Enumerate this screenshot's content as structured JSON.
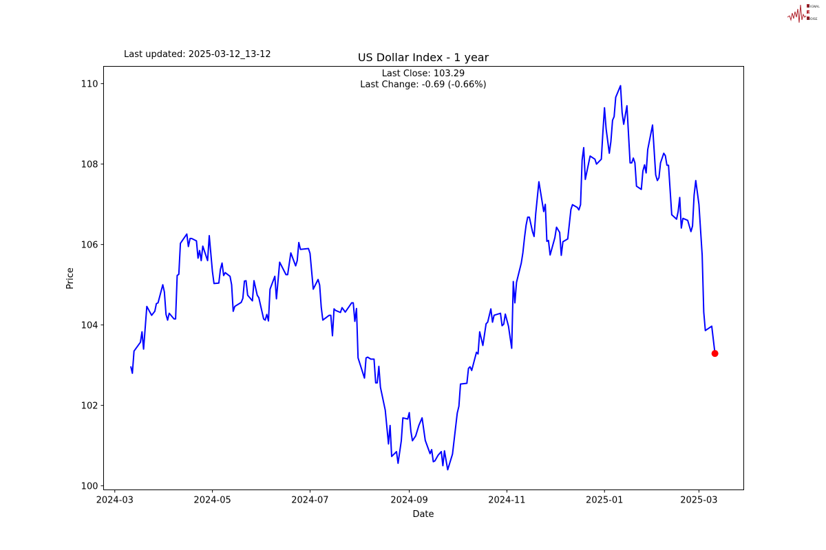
{
  "logo": {
    "text": [
      "SIGNAL",
      "2",
      "NOISE"
    ],
    "color": "#b0202a"
  },
  "chart_data": {
    "type": "line",
    "title": "US Dollar Index - 1 year",
    "updated": "Last updated: 2025-03-12_13-12",
    "annotation_close": "Last Close: 103.29",
    "annotation_change": "Last Change: -0.69 (-0.66%)",
    "xlabel": "Date",
    "ylabel": "Price",
    "xlim": [
      "2024-02-23",
      "2025-03-29"
    ],
    "ylim": [
      99.9,
      110.43
    ],
    "xticks": [
      "2024-03",
      "2024-05",
      "2024-07",
      "2024-09",
      "2024-11",
      "2025-01",
      "2025-03"
    ],
    "yticks": [
      100,
      102,
      104,
      106,
      108,
      110
    ],
    "grid": false,
    "line_color": "#0000ff",
    "last_point_color": "#ff0000",
    "last_point": {
      "date": "2025-03-11",
      "value": 103.29
    },
    "series": [
      {
        "points": [
          [
            "2024-03-11",
            102.97
          ],
          [
            "2024-03-12",
            102.8
          ],
          [
            "2024-03-13",
            103.35
          ],
          [
            "2024-03-17",
            103.57
          ],
          [
            "2024-03-18",
            103.83
          ],
          [
            "2024-03-19",
            103.4
          ],
          [
            "2024-03-21",
            104.46
          ],
          [
            "2024-03-24",
            104.24
          ],
          [
            "2024-03-26",
            104.34
          ],
          [
            "2024-03-27",
            104.53
          ],
          [
            "2024-03-28",
            104.55
          ],
          [
            "2024-03-31",
            105.0
          ],
          [
            "2024-04-01",
            104.82
          ],
          [
            "2024-04-02",
            104.26
          ],
          [
            "2024-04-03",
            104.12
          ],
          [
            "2024-04-04",
            104.29
          ],
          [
            "2024-04-07",
            104.15
          ],
          [
            "2024-04-08",
            104.15
          ],
          [
            "2024-04-09",
            105.23
          ],
          [
            "2024-04-10",
            105.26
          ],
          [
            "2024-04-11",
            106.03
          ],
          [
            "2024-04-15",
            106.26
          ],
          [
            "2024-04-16",
            105.95
          ],
          [
            "2024-04-17",
            106.15
          ],
          [
            "2024-04-18",
            106.15
          ],
          [
            "2024-04-21",
            106.09
          ],
          [
            "2024-04-22",
            105.66
          ],
          [
            "2024-04-23",
            105.85
          ],
          [
            "2024-04-24",
            105.6
          ],
          [
            "2024-04-25",
            105.96
          ],
          [
            "2024-04-28",
            105.6
          ],
          [
            "2024-04-29",
            106.22
          ],
          [
            "2024-05-01",
            105.33
          ],
          [
            "2024-05-02",
            105.03
          ],
          [
            "2024-05-05",
            105.04
          ],
          [
            "2024-05-06",
            105.38
          ],
          [
            "2024-05-07",
            105.54
          ],
          [
            "2024-05-08",
            105.23
          ],
          [
            "2024-05-09",
            105.3
          ],
          [
            "2024-05-12",
            105.21
          ],
          [
            "2024-05-13",
            105.0
          ],
          [
            "2024-05-14",
            104.34
          ],
          [
            "2024-05-15",
            104.46
          ],
          [
            "2024-05-19",
            104.56
          ],
          [
            "2024-05-20",
            104.66
          ],
          [
            "2024-05-21",
            105.09
          ],
          [
            "2024-05-22",
            105.1
          ],
          [
            "2024-05-23",
            104.74
          ],
          [
            "2024-05-26",
            104.6
          ],
          [
            "2024-05-27",
            105.1
          ],
          [
            "2024-05-29",
            104.74
          ],
          [
            "2024-05-30",
            104.68
          ],
          [
            "2024-06-02",
            104.15
          ],
          [
            "2024-06-03",
            104.12
          ],
          [
            "2024-06-04",
            104.26
          ],
          [
            "2024-06-05",
            104.1
          ],
          [
            "2024-06-06",
            104.89
          ],
          [
            "2024-06-09",
            105.21
          ],
          [
            "2024-06-10",
            104.65
          ],
          [
            "2024-06-12",
            105.56
          ],
          [
            "2024-06-16",
            105.25
          ],
          [
            "2024-06-17",
            105.25
          ],
          [
            "2024-06-19",
            105.79
          ],
          [
            "2024-06-22",
            105.47
          ],
          [
            "2024-06-23",
            105.6
          ],
          [
            "2024-06-24",
            106.05
          ],
          [
            "2024-06-25",
            105.88
          ],
          [
            "2024-06-30",
            105.9
          ],
          [
            "2024-07-01",
            105.78
          ],
          [
            "2024-07-03",
            104.89
          ],
          [
            "2024-07-06",
            105.13
          ],
          [
            "2024-07-07",
            104.99
          ],
          [
            "2024-07-08",
            104.44
          ],
          [
            "2024-07-09",
            104.12
          ],
          [
            "2024-07-13",
            104.24
          ],
          [
            "2024-07-14",
            104.24
          ],
          [
            "2024-07-15",
            103.73
          ],
          [
            "2024-07-16",
            104.4
          ],
          [
            "2024-07-17",
            104.36
          ],
          [
            "2024-07-20",
            104.31
          ],
          [
            "2024-07-21",
            104.43
          ],
          [
            "2024-07-23",
            104.32
          ],
          [
            "2024-07-27",
            104.55
          ],
          [
            "2024-07-28",
            104.55
          ],
          [
            "2024-07-29",
            104.09
          ],
          [
            "2024-07-30",
            104.41
          ],
          [
            "2024-07-31",
            103.18
          ],
          [
            "2024-08-04",
            102.68
          ],
          [
            "2024-08-05",
            103.18
          ],
          [
            "2024-08-06",
            103.2
          ],
          [
            "2024-08-08",
            103.15
          ],
          [
            "2024-08-10",
            103.15
          ],
          [
            "2024-08-11",
            102.56
          ],
          [
            "2024-08-12",
            102.56
          ],
          [
            "2024-08-13",
            102.97
          ],
          [
            "2024-08-14",
            102.45
          ],
          [
            "2024-08-17",
            101.88
          ],
          [
            "2024-08-19",
            101.04
          ],
          [
            "2024-08-20",
            101.5
          ],
          [
            "2024-08-21",
            100.73
          ],
          [
            "2024-08-24",
            100.85
          ],
          [
            "2024-08-25",
            100.56
          ],
          [
            "2024-08-27",
            101.12
          ],
          [
            "2024-08-28",
            101.69
          ],
          [
            "2024-08-31",
            101.66
          ],
          [
            "2024-09-01",
            101.82
          ],
          [
            "2024-09-02",
            101.36
          ],
          [
            "2024-09-03",
            101.12
          ],
          [
            "2024-09-05",
            101.24
          ],
          [
            "2024-09-07",
            101.5
          ],
          [
            "2024-09-09",
            101.69
          ],
          [
            "2024-09-11",
            101.13
          ],
          [
            "2024-09-14",
            100.8
          ],
          [
            "2024-09-15",
            100.9
          ],
          [
            "2024-09-16",
            100.6
          ],
          [
            "2024-09-17",
            100.62
          ],
          [
            "2024-09-19",
            100.76
          ],
          [
            "2024-09-21",
            100.85
          ],
          [
            "2024-09-22",
            100.5
          ],
          [
            "2024-09-23",
            100.87
          ],
          [
            "2024-09-25",
            100.4
          ],
          [
            "2024-09-28",
            100.79
          ],
          [
            "2024-10-01",
            101.81
          ],
          [
            "2024-10-02",
            101.98
          ],
          [
            "2024-10-03",
            102.53
          ],
          [
            "2024-10-07",
            102.55
          ],
          [
            "2024-10-08",
            102.92
          ],
          [
            "2024-10-09",
            102.96
          ],
          [
            "2024-10-10",
            102.87
          ],
          [
            "2024-10-13",
            103.32
          ],
          [
            "2024-10-14",
            103.28
          ],
          [
            "2024-10-15",
            103.83
          ],
          [
            "2024-10-17",
            103.49
          ],
          [
            "2024-10-19",
            104.03
          ],
          [
            "2024-10-20",
            104.07
          ],
          [
            "2024-10-22",
            104.4
          ],
          [
            "2024-10-23",
            104.07
          ],
          [
            "2024-10-24",
            104.24
          ],
          [
            "2024-10-28",
            104.29
          ],
          [
            "2024-10-29",
            103.98
          ],
          [
            "2024-10-30",
            104.02
          ],
          [
            "2024-10-31",
            104.27
          ],
          [
            "2024-11-02",
            103.97
          ],
          [
            "2024-11-04",
            103.42
          ],
          [
            "2024-11-05",
            105.08
          ],
          [
            "2024-11-06",
            104.55
          ],
          [
            "2024-11-07",
            105.06
          ],
          [
            "2024-11-10",
            105.54
          ],
          [
            "2024-11-11",
            105.79
          ],
          [
            "2024-11-12",
            106.17
          ],
          [
            "2024-11-13",
            106.48
          ],
          [
            "2024-11-14",
            106.68
          ],
          [
            "2024-11-15",
            106.68
          ],
          [
            "2024-11-17",
            106.32
          ],
          [
            "2024-11-18",
            106.2
          ],
          [
            "2024-11-19",
            106.77
          ],
          [
            "2024-11-21",
            107.56
          ],
          [
            "2024-11-24",
            106.82
          ],
          [
            "2024-11-25",
            107.0
          ],
          [
            "2024-11-26",
            106.08
          ],
          [
            "2024-11-27",
            106.1
          ],
          [
            "2024-11-28",
            105.74
          ],
          [
            "2024-12-01",
            106.17
          ],
          [
            "2024-12-02",
            106.43
          ],
          [
            "2024-12-04",
            106.3
          ],
          [
            "2024-12-05",
            105.73
          ],
          [
            "2024-12-06",
            106.07
          ],
          [
            "2024-12-09",
            106.14
          ],
          [
            "2024-12-11",
            106.87
          ],
          [
            "2024-12-12",
            106.99
          ],
          [
            "2024-12-15",
            106.92
          ],
          [
            "2024-12-16",
            106.86
          ],
          [
            "2024-12-17",
            106.99
          ],
          [
            "2024-12-18",
            108.1
          ],
          [
            "2024-12-19",
            108.41
          ],
          [
            "2024-12-20",
            107.62
          ],
          [
            "2024-12-23",
            108.2
          ],
          [
            "2024-12-26",
            108.12
          ],
          [
            "2024-12-27",
            108.0
          ],
          [
            "2024-12-30",
            108.12
          ],
          [
            "2024-12-31",
            108.8
          ],
          [
            "2025-01-01",
            109.4
          ],
          [
            "2025-01-02",
            108.87
          ],
          [
            "2025-01-04",
            108.27
          ],
          [
            "2025-01-05",
            108.56
          ],
          [
            "2025-01-06",
            109.09
          ],
          [
            "2025-01-07",
            109.18
          ],
          [
            "2025-01-08",
            109.66
          ],
          [
            "2025-01-11",
            109.95
          ],
          [
            "2025-01-12",
            109.28
          ],
          [
            "2025-01-13",
            108.99
          ],
          [
            "2025-01-15",
            109.45
          ],
          [
            "2025-01-17",
            108.03
          ],
          [
            "2025-01-18",
            108.03
          ],
          [
            "2025-01-19",
            108.15
          ],
          [
            "2025-01-20",
            108.03
          ],
          [
            "2025-01-21",
            107.45
          ],
          [
            "2025-01-24",
            107.37
          ],
          [
            "2025-01-25",
            107.83
          ],
          [
            "2025-01-26",
            107.98
          ],
          [
            "2025-01-27",
            107.78
          ],
          [
            "2025-01-28",
            108.36
          ],
          [
            "2025-01-31",
            108.97
          ],
          [
            "2025-02-02",
            107.73
          ],
          [
            "2025-02-03",
            107.59
          ],
          [
            "2025-02-04",
            107.66
          ],
          [
            "2025-02-05",
            108.03
          ],
          [
            "2025-02-07",
            108.27
          ],
          [
            "2025-02-08",
            108.21
          ],
          [
            "2025-02-09",
            107.97
          ],
          [
            "2025-02-10",
            107.97
          ],
          [
            "2025-02-12",
            106.74
          ],
          [
            "2025-02-15",
            106.63
          ],
          [
            "2025-02-16",
            106.82
          ],
          [
            "2025-02-17",
            107.17
          ],
          [
            "2025-02-18",
            106.41
          ],
          [
            "2025-02-19",
            106.65
          ],
          [
            "2025-02-22",
            106.6
          ],
          [
            "2025-02-24",
            106.32
          ],
          [
            "2025-02-25",
            106.46
          ],
          [
            "2025-02-26",
            107.23
          ],
          [
            "2025-02-27",
            107.59
          ],
          [
            "2025-03-01",
            107.0
          ],
          [
            "2025-03-03",
            105.74
          ],
          [
            "2025-03-04",
            104.32
          ],
          [
            "2025-03-05",
            103.86
          ],
          [
            "2025-03-09",
            103.97
          ],
          [
            "2025-03-11",
            103.29
          ]
        ]
      }
    ]
  }
}
